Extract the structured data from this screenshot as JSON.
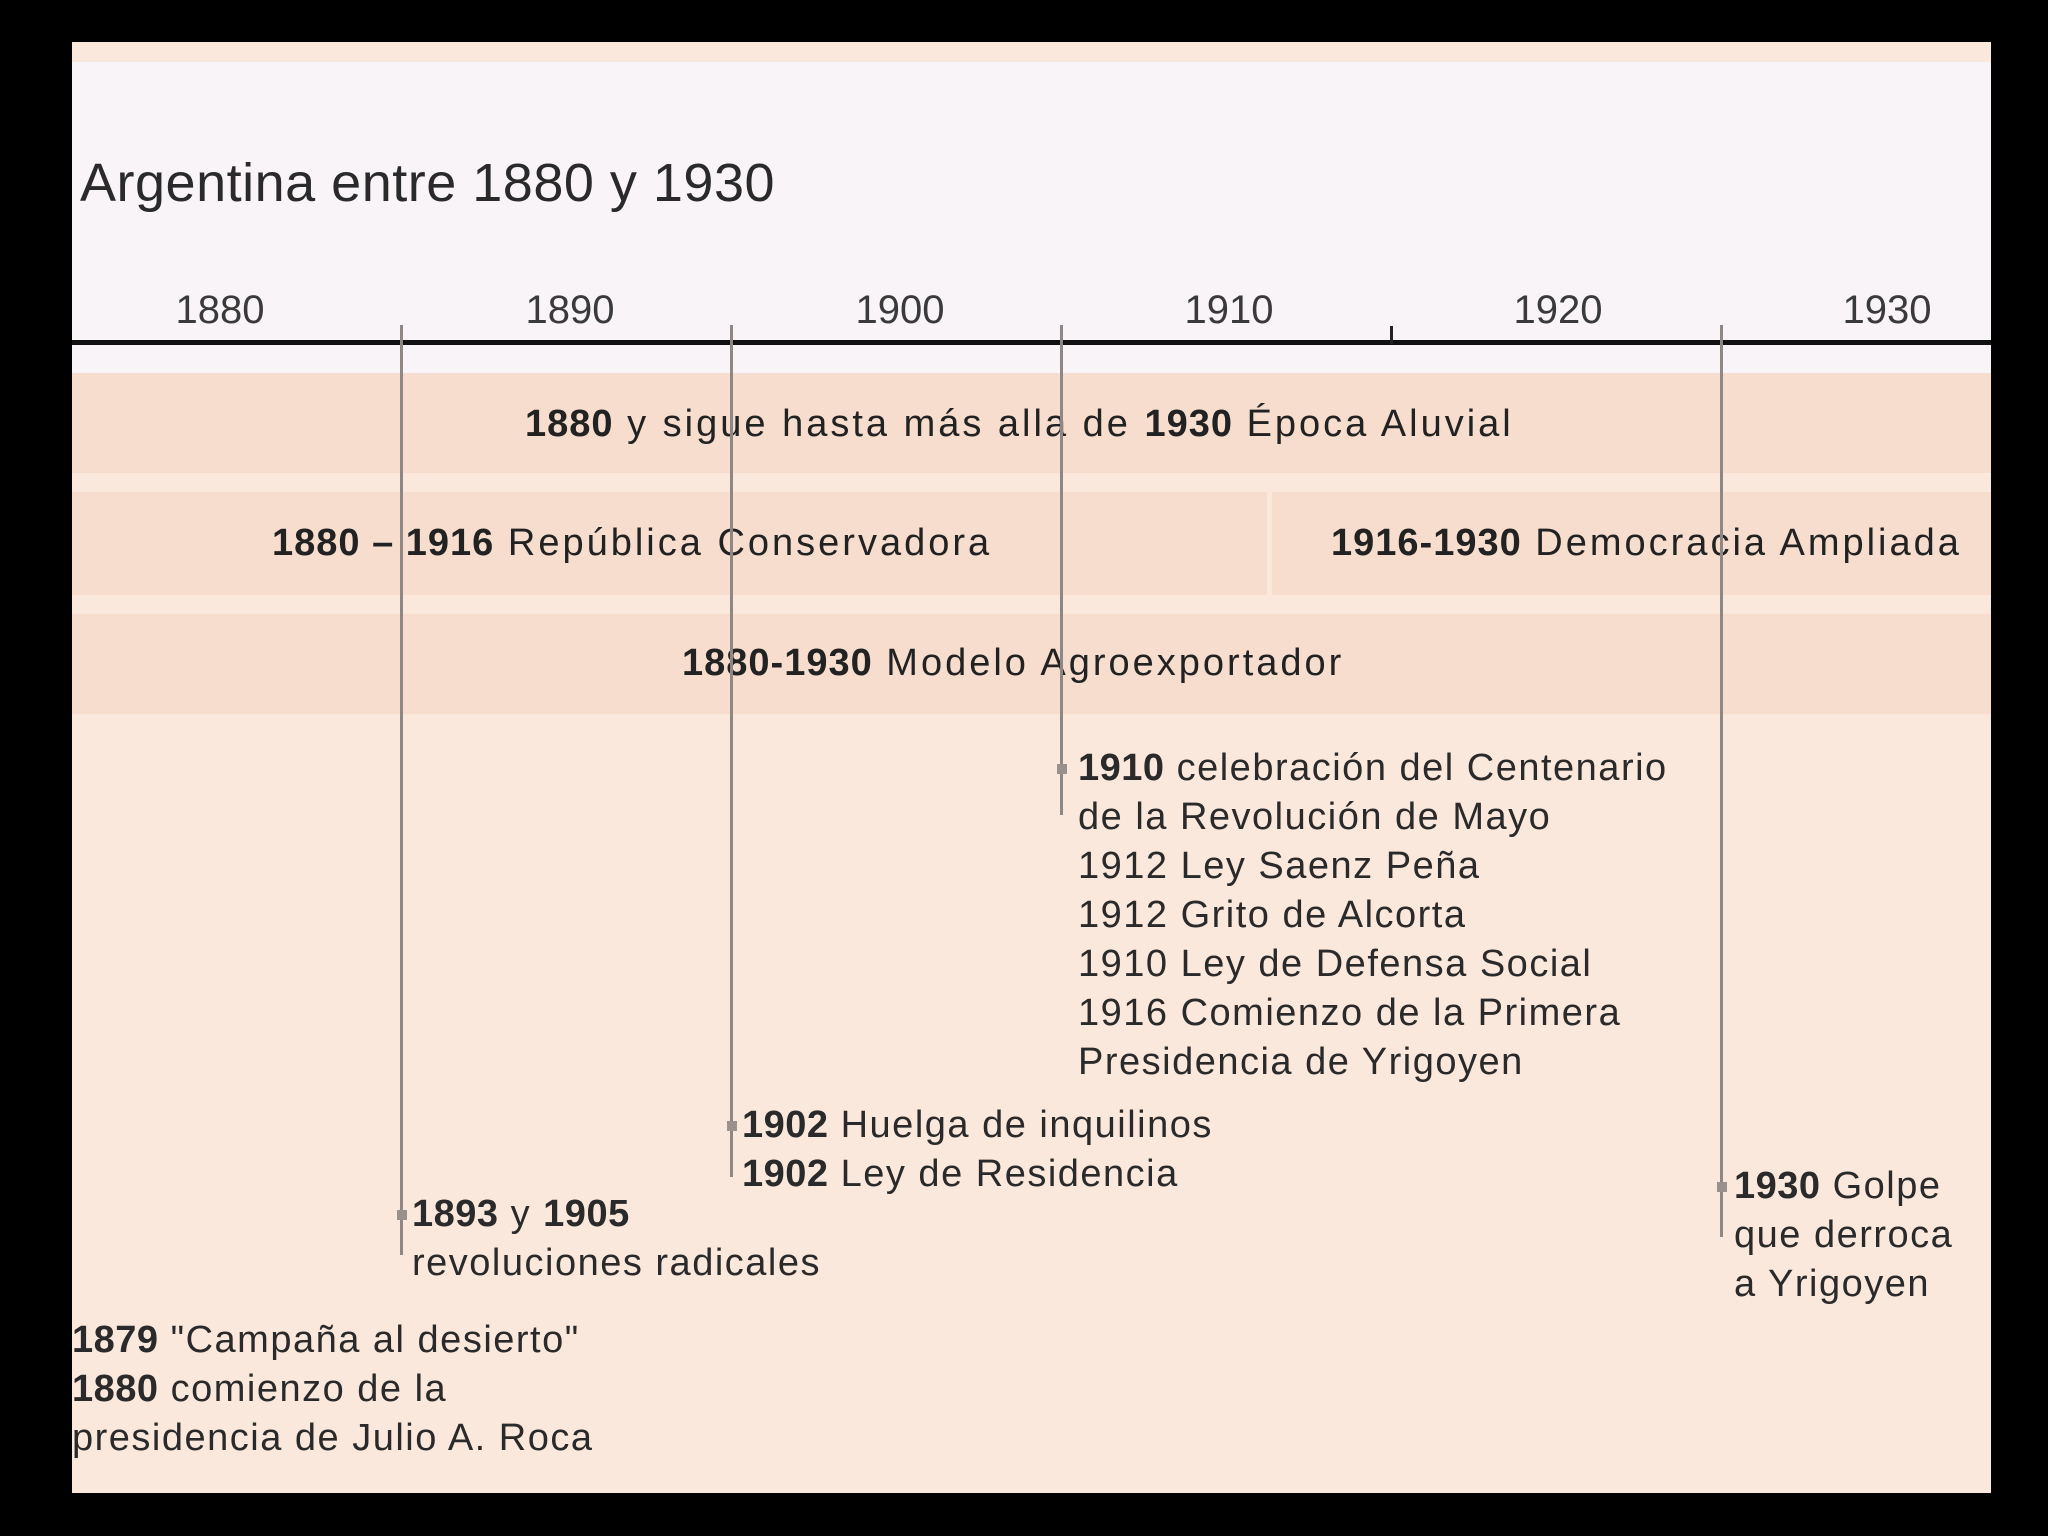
{
  "title": "Argentina entre 1880 y 1930",
  "axis": {
    "years": [
      "1880",
      "1890",
      "1900",
      "1910",
      "1920",
      "1930"
    ]
  },
  "bands": [
    {
      "bold_start": "1880",
      "mid_text": " y sigue hasta más alla de ",
      "bold_end": "1930",
      "label": " Época  Aluvial"
    },
    {
      "bold": "1880 – 1916",
      "label": " República Conservadora"
    },
    {
      "bold": "1916-1930",
      "label": " Democracia Ampliada"
    },
    {
      "bold": "1880-1930",
      "label": " Modelo Agroexportador"
    }
  ],
  "events": {
    "e1879": {
      "lines": [
        {
          "bold": "1879",
          "text": " \"Campaña al desierto\""
        },
        {
          "bold": "1880",
          "text": " comienzo de la"
        },
        {
          "bold": "",
          "text": "presidencia de Julio A. Roca"
        }
      ]
    },
    "e1893": {
      "lines": [
        {
          "bold": "1893",
          "text": " y ",
          "bold2": "1905"
        },
        {
          "bold": "",
          "text": "revoluciones radicales"
        }
      ]
    },
    "e1902": {
      "lines": [
        {
          "bold": "1902",
          "text": " Huelga de inquilinos"
        },
        {
          "bold": "1902",
          "text": " Ley de Residencia"
        }
      ]
    },
    "e1910": {
      "lines": [
        {
          "bold": "1910",
          "text": " celebración del Centenario"
        },
        {
          "bold": "",
          "text": "de la Revolución de Mayo"
        },
        {
          "bold": "",
          "text": "1912 Ley Saenz Peña"
        },
        {
          "bold": "",
          "text": "1912 Grito de Alcorta"
        },
        {
          "bold": "",
          "text": "1910 Ley de Defensa Social"
        },
        {
          "bold": "",
          "text": "1916 Comienzo de la Primera"
        },
        {
          "bold": "",
          "text": "Presidencia de Yrigoyen"
        }
      ]
    },
    "e1930": {
      "lines": [
        {
          "bold": "1930",
          "text": " Golpe"
        },
        {
          "bold": "",
          "text": "que derroca"
        },
        {
          "bold": "",
          "text": "a Yrigoyen"
        }
      ]
    }
  },
  "colors": {
    "page_background": "#000000",
    "slide_background": "#fbe8dc",
    "header_background": "#f8f4f7",
    "band_background": "#f6ddcd",
    "connector": "#8f8783"
  }
}
